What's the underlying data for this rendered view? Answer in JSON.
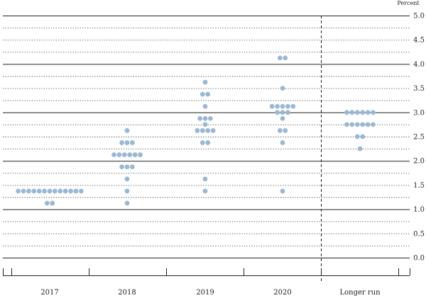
{
  "chart_data": {
    "type": "scatter",
    "title": "",
    "ylabel": "Percent",
    "xlabel": "",
    "ylim": [
      0,
      5
    ],
    "ytick_step": 0.25,
    "ytick_labels": [
      "0.0",
      "0.5",
      "1.0",
      "1.5",
      "2.0",
      "2.5",
      "3.0",
      "3.5",
      "4.0",
      "4.5",
      "5.0"
    ],
    "categories": [
      "2017",
      "2018",
      "2019",
      "2020",
      "Longer run"
    ],
    "separator_after": "2020",
    "dot_color": "#9ab8d4",
    "line_colors": {
      "major": "#222222",
      "minor": "#444444"
    },
    "series": [
      {
        "category": "2017",
        "dots": [
          {
            "y": 1.375,
            "count": 13
          },
          {
            "y": 1.125,
            "count": 2
          }
        ]
      },
      {
        "category": "2018",
        "dots": [
          {
            "y": 2.625,
            "count": 1
          },
          {
            "y": 2.375,
            "count": 3
          },
          {
            "y": 2.125,
            "count": 6
          },
          {
            "y": 1.875,
            "count": 3
          },
          {
            "y": 1.625,
            "count": 1
          },
          {
            "y": 1.375,
            "count": 1
          },
          {
            "y": 1.125,
            "count": 1
          }
        ]
      },
      {
        "category": "2019",
        "dots": [
          {
            "y": 3.625,
            "count": 1
          },
          {
            "y": 3.375,
            "count": 2
          },
          {
            "y": 3.125,
            "count": 1
          },
          {
            "y": 2.875,
            "count": 3
          },
          {
            "y": 2.75,
            "count": 1
          },
          {
            "y": 2.625,
            "count": 4
          },
          {
            "y": 2.375,
            "count": 2
          },
          {
            "y": 1.625,
            "count": 1
          },
          {
            "y": 1.375,
            "count": 1
          }
        ]
      },
      {
        "category": "2020",
        "dots": [
          {
            "y": 4.125,
            "count": 2
          },
          {
            "y": 3.5,
            "count": 1
          },
          {
            "y": 3.125,
            "count": 5
          },
          {
            "y": 3.0,
            "count": 3
          },
          {
            "y": 2.875,
            "count": 1
          },
          {
            "y": 2.625,
            "count": 2
          },
          {
            "y": 2.375,
            "count": 1
          },
          {
            "y": 1.375,
            "count": 1
          }
        ]
      },
      {
        "category": "Longer run",
        "dots": [
          {
            "y": 3.0,
            "count": 6
          },
          {
            "y": 2.75,
            "count": 6
          },
          {
            "y": 2.5,
            "count": 2
          },
          {
            "y": 2.25,
            "count": 1
          }
        ]
      }
    ]
  }
}
